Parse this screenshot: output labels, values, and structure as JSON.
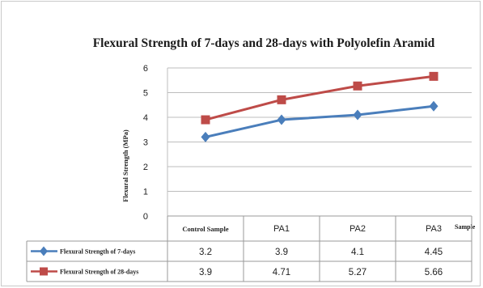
{
  "chart_data": {
    "type": "line",
    "title": "Flexural Strength of 7-days and 28-days with Polyolefin Aramid",
    "ylabel": "Flexural Strength (MPa)",
    "xlabel": "Sample",
    "ylim": [
      0,
      6
    ],
    "yticks": [
      0,
      1,
      2,
      3,
      4,
      5,
      6
    ],
    "grid": true,
    "categories": [
      "Control Sample",
      "PA1",
      "PA2",
      "PA3"
    ],
    "series": [
      {
        "name": "Flexural Strength of 7-days",
        "values": [
          3.2,
          3.9,
          4.1,
          4.45
        ],
        "value_labels": [
          "3.2",
          "3.9",
          "4.1",
          "4.45"
        ],
        "color": "#4a7ebb",
        "marker": "diamond"
      },
      {
        "name": "Flexural Strength of 28-days",
        "values": [
          3.9,
          4.71,
          5.27,
          5.66
        ],
        "value_labels": [
          "3.9",
          "4.71",
          "5.27",
          "5.66"
        ],
        "color": "#be4b48",
        "marker": "square"
      }
    ],
    "legend": "data-table-rows"
  }
}
